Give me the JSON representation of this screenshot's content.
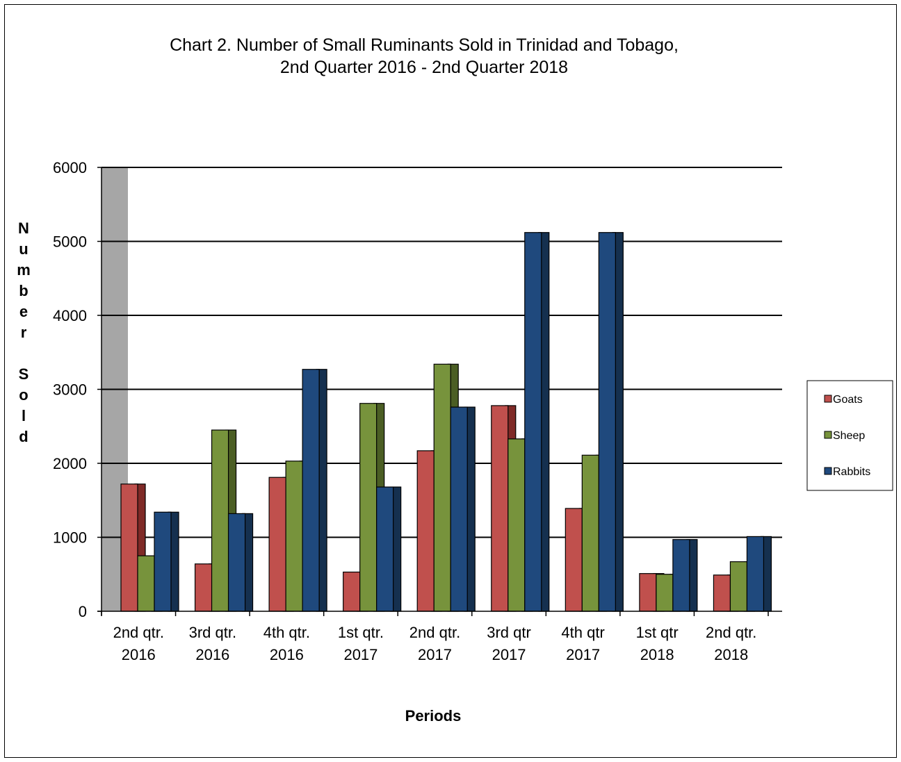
{
  "chart_data": {
    "type": "bar",
    "title_lines": [
      "Chart 2. Number of Small Ruminants Sold in Trinidad and Tobago,",
      "2nd Quarter 2016 - 2nd Quarter 2018"
    ],
    "xlabel": "Periods",
    "ylabel": "Number Sold",
    "ylabel_letters": [
      "N",
      "u",
      "m",
      "b",
      "e",
      "r",
      "",
      "S",
      "o",
      "l",
      "d"
    ],
    "ylim": [
      0,
      6000
    ],
    "yticks": [
      0,
      1000,
      2000,
      3000,
      4000,
      5000,
      6000
    ],
    "grid": true,
    "legend_position": "right",
    "categories": [
      [
        "2nd qtr.",
        "2016"
      ],
      [
        "3rd qtr.",
        "2016"
      ],
      [
        "4th qtr.",
        "2016"
      ],
      [
        "1st qtr.",
        "2017"
      ],
      [
        "2nd qtr.",
        "2017"
      ],
      [
        "3rd qtr",
        "2017"
      ],
      [
        "4th qtr",
        "2017"
      ],
      [
        "1st qtr",
        "2018"
      ],
      [
        "2nd qtr.",
        "2018"
      ]
    ],
    "series": [
      {
        "name": "Goats",
        "color": "#C0504D",
        "shade": "#7F2A27",
        "values": [
          1720,
          640,
          1810,
          530,
          2170,
          2780,
          1390,
          510,
          490
        ]
      },
      {
        "name": "Sheep",
        "color": "#77933C",
        "shade": "#4B5E24",
        "values": [
          750,
          2450,
          2030,
          2810,
          3340,
          2330,
          2110,
          500,
          670
        ]
      },
      {
        "name": "Rabbits",
        "color": "#1F497D",
        "shade": "#15304F",
        "values": [
          1340,
          1320,
          3270,
          1680,
          2760,
          5120,
          5120,
          970,
          1010
        ]
      }
    ]
  }
}
